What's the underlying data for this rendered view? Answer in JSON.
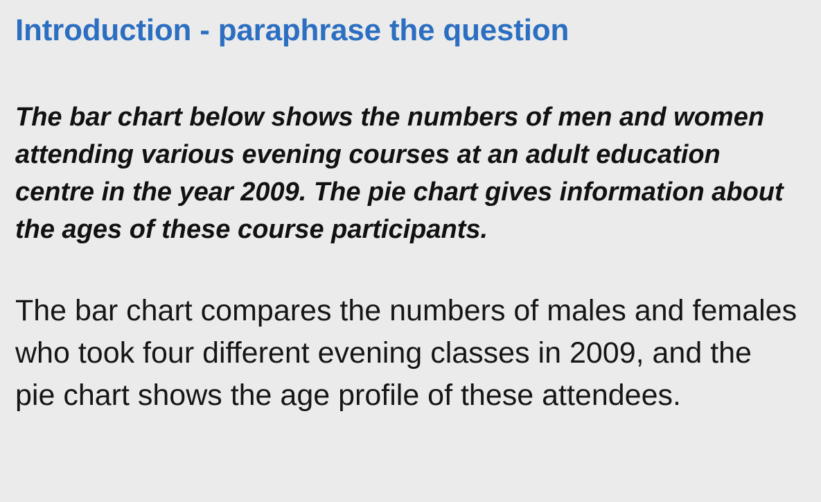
{
  "slide": {
    "heading": "Introduction - paraphrase the question",
    "question": "The bar chart below shows the numbers of men and women attending various evening courses at an adult education centre in the year 2009. The pie chart gives information about the ages of these course participants.",
    "answer": "The bar chart compares the numbers of males and females who took four different evening classes in 2009, and the pie chart shows the age profile of these attendees."
  },
  "colors": {
    "background": "#ebebeb",
    "heading": "#2c6fc1",
    "text": "#111111"
  }
}
